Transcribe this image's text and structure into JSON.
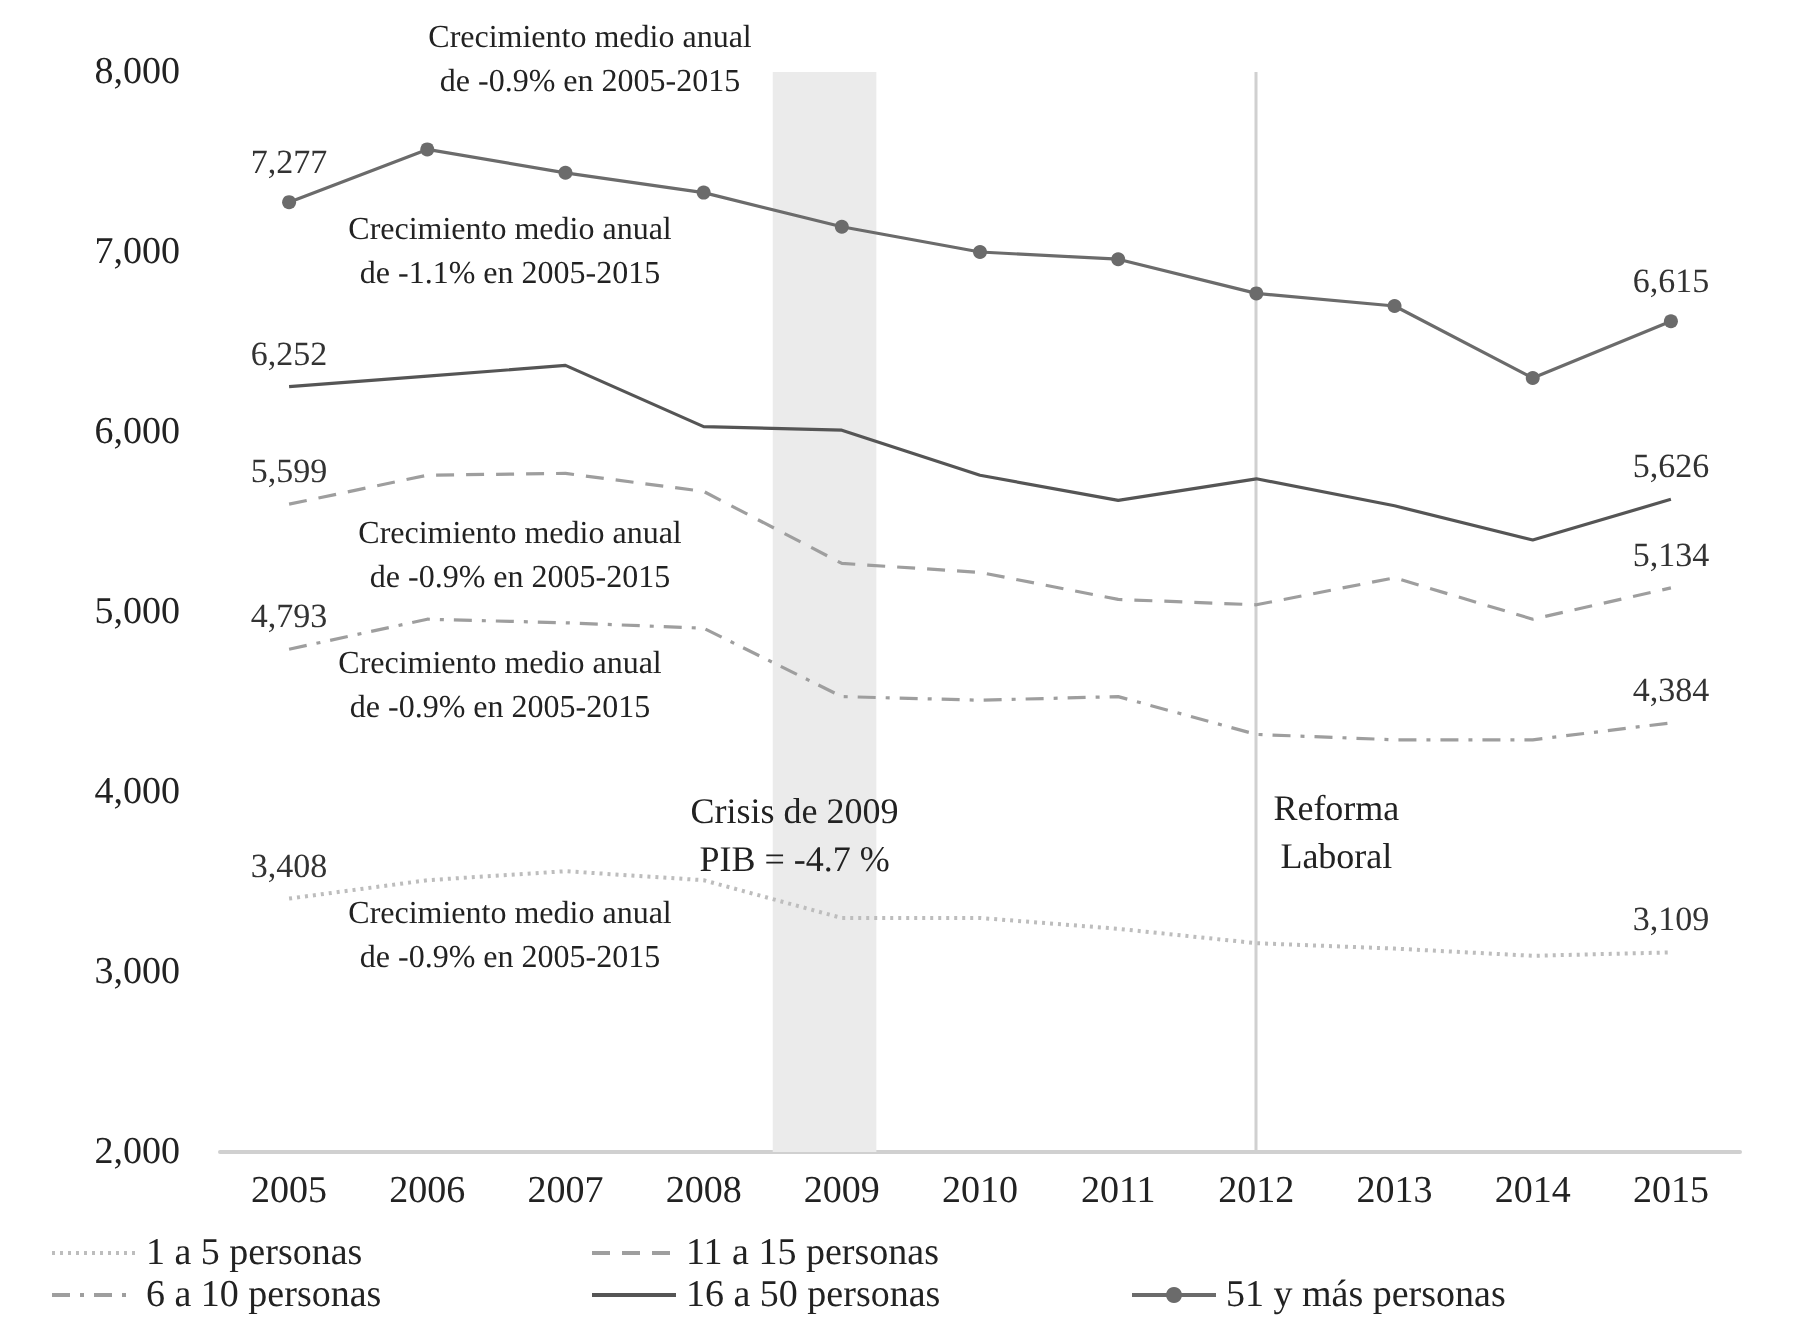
{
  "chart_data": {
    "type": "line",
    "x": [
      2005,
      2006,
      2007,
      2008,
      2009,
      2010,
      2011,
      2012,
      2013,
      2014,
      2015
    ],
    "xlim": [
      2004.5,
      2015.5
    ],
    "xticks": [
      2005,
      2006,
      2007,
      2008,
      2009,
      2010,
      2011,
      2012,
      2013,
      2014,
      2015
    ],
    "ylim": [
      2000,
      8000
    ],
    "yticks": [
      {
        "value": 2000,
        "label": "2,000"
      },
      {
        "value": 3000,
        "label": "3,000"
      },
      {
        "value": 4000,
        "label": "4,000"
      },
      {
        "value": 5000,
        "label": "5,000"
      },
      {
        "value": 6000,
        "label": "6,000"
      },
      {
        "value": 7000,
        "label": "7,000"
      },
      {
        "value": 8000,
        "label": "8,000"
      }
    ],
    "grid": false,
    "legend": "bottom",
    "series": [
      {
        "name": "1 a 5 personas",
        "color": "#bdbdbd",
        "line_style": "dotted",
        "values": [
          3408,
          3510,
          3560,
          3510,
          3300,
          3300,
          3240,
          3160,
          3130,
          3090,
          3109
        ],
        "value_labels": [
          "3,408",
          null,
          null,
          null,
          null,
          null,
          null,
          null,
          null,
          null,
          "3,109"
        ]
      },
      {
        "name": "6 a 10 personas",
        "color": "#9e9e9e",
        "line_style": "dashdot",
        "values": [
          4793,
          4960,
          4940,
          4910,
          4530,
          4510,
          4530,
          4320,
          4290,
          4290,
          4384
        ],
        "value_labels": [
          "4,793",
          null,
          null,
          null,
          null,
          null,
          null,
          null,
          null,
          null,
          "4,384"
        ]
      },
      {
        "name": "11 a 15 personas",
        "color": "#9e9e9e",
        "line_style": "dashed",
        "values": [
          5599,
          5760,
          5770,
          5670,
          5270,
          5220,
          5070,
          5040,
          5190,
          4960,
          5134
        ],
        "value_labels": [
          "5,599",
          null,
          null,
          null,
          null,
          null,
          null,
          null,
          null,
          null,
          "5,134"
        ]
      },
      {
        "name": "16 a 50 personas",
        "color": "#555555",
        "line_style": "solid",
        "values": [
          6252,
          6310,
          6370,
          6030,
          6010,
          5760,
          5620,
          5740,
          5590,
          5400,
          5626
        ],
        "value_labels": [
          "6,252",
          null,
          null,
          null,
          null,
          null,
          null,
          null,
          null,
          null,
          "5,626"
        ]
      },
      {
        "name": "51 y más personas",
        "color": "#6b6b6b",
        "line_style": "solid",
        "marker": "circle",
        "values": [
          7277,
          7570,
          7440,
          7330,
          7140,
          7000,
          6960,
          6770,
          6700,
          6300,
          6615
        ],
        "value_labels": [
          "7,277",
          null,
          null,
          null,
          null,
          null,
          null,
          null,
          null,
          null,
          "6,615"
        ]
      }
    ],
    "bands": [
      {
        "axis": "x",
        "from": 2008.5,
        "to": 2009.25,
        "color": "#ebebeb",
        "label": "Crisis de 2009\nPIB = -4.7 %"
      }
    ],
    "ref_lines": [
      {
        "axis": "x",
        "value": 2012,
        "color": "#d0d0d0",
        "label": "Reforma\nLaboral"
      }
    ],
    "annotations": [
      "Crecimiento medio anual\nde -0.9% en 2005-2015",
      "Crecimiento medio anual\nde -1.1% en 2005-2015",
      "Crecimiento medio anual\nde -0.9% en 2005-2015",
      "Crecimiento medio anual\nde -0.9% en 2005-2015",
      "Crecimiento medio anual\nde -0.9% en 2005-2015"
    ]
  }
}
